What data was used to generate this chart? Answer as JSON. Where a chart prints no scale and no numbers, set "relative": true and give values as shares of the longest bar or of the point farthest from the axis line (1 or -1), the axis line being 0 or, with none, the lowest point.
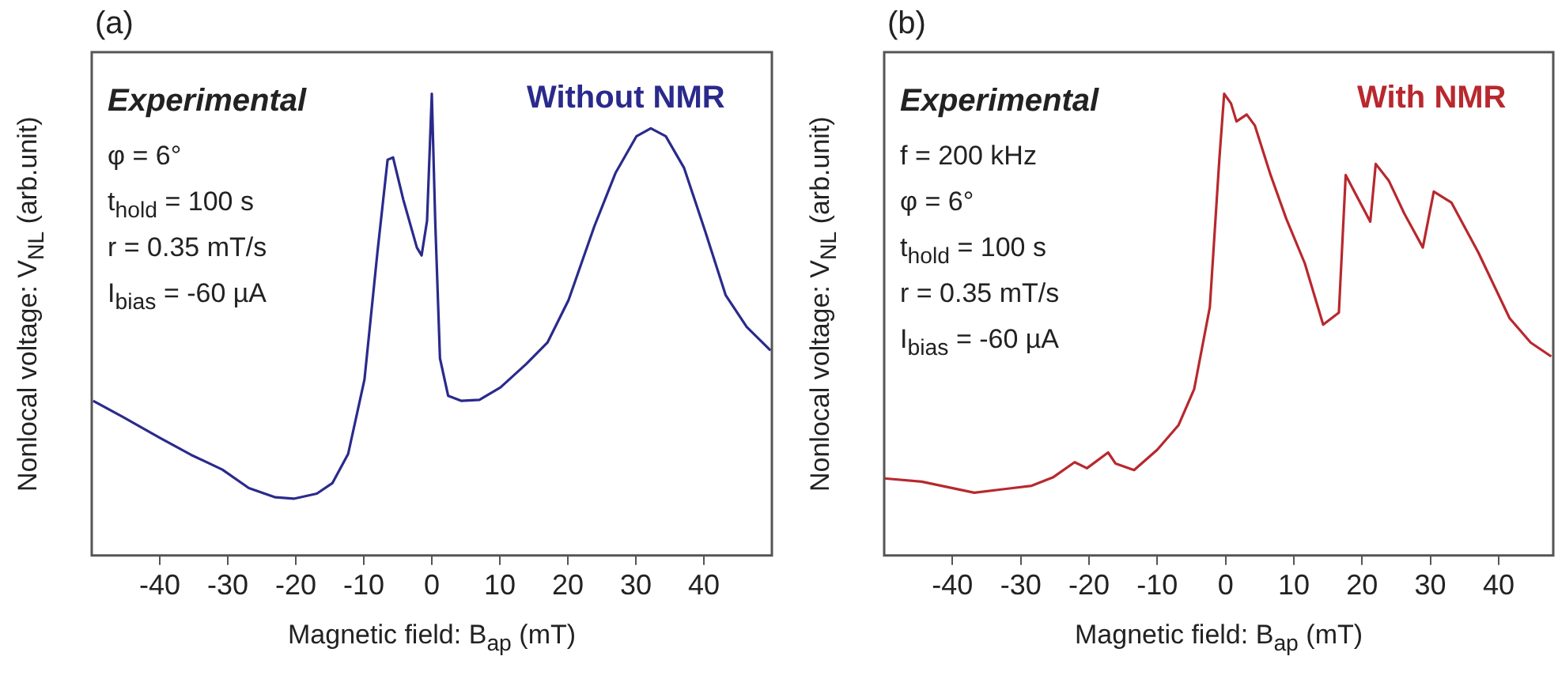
{
  "chart_data": [
    {
      "type": "line",
      "title": "(a)",
      "xlabel": "Magnetic field: B$_{ap}$  (mT)",
      "ylabel": "Nonlocal voltage: V$_{NL}$  (arb.unit)",
      "relative": true,
      "marker": "none",
      "line_style": "solid",
      "grid": false,
      "xlim": [
        -50,
        50
      ],
      "xticks": [
        -40,
        -30,
        -20,
        -10,
        0,
        10,
        20,
        30,
        40
      ],
      "annotations": [
        "Experimental",
        "φ = 6°",
        "t$_{hold}$ = 100 s",
        "r = 0.35 mT/s",
        "I$_{bias}$ = -60 µA"
      ],
      "series": [
        {
          "name": "Without NMR",
          "color": "#2a2a8c",
          "x": [
            -49.8,
            -45.4,
            -40,
            -35.4,
            -30.8,
            -26.9,
            -23,
            -20.3,
            -16.9,
            -14.6,
            -12.3,
            -9.9,
            -8.0,
            -6.5,
            -5.7,
            -4.2,
            -2.2,
            -1.5,
            -0.7,
            0,
            0.5,
            1.2,
            2.4,
            4.3,
            7.0,
            10.1,
            13.9,
            17.0,
            20.1,
            23.9,
            27.0,
            30.1,
            32.2,
            34.4,
            37.1,
            40.2,
            43.2,
            46.3,
            49.8
          ],
          "values": [
            0.335,
            0.3,
            0.255,
            0.218,
            0.186,
            0.146,
            0.126,
            0.123,
            0.134,
            0.157,
            0.22,
            0.381,
            0.656,
            0.857,
            0.862,
            0.771,
            0.667,
            0.65,
            0.725,
            1.0,
            0.725,
            0.427,
            0.346,
            0.335,
            0.337,
            0.364,
            0.415,
            0.461,
            0.553,
            0.713,
            0.828,
            0.908,
            0.925,
            0.908,
            0.839,
            0.702,
            0.564,
            0.495,
            0.444
          ]
        }
      ]
    },
    {
      "type": "line",
      "title": "(b)",
      "xlabel": "Magnetic field: B$_{ap}$  (mT)",
      "ylabel": "Nonlocal voltage: V$_{NL}$  (arb.unit)",
      "relative": true,
      "marker": "none",
      "line_style": "solid",
      "grid": false,
      "xlim": [
        -50,
        48
      ],
      "xticks": [
        -40,
        -30,
        -20,
        -10,
        0,
        10,
        20,
        30,
        40
      ],
      "annotations": [
        "Experimental",
        "f = 200 kHz",
        "φ = 6°",
        "t$_{hold}$ = 100 s",
        "r = 0.35 mT/s",
        "I$_{bias}$ = -60 µA"
      ],
      "series": [
        {
          "name": "With NMR",
          "color": "#b8282e",
          "x": [
            -50,
            -44.5,
            -36.8,
            -28.4,
            -25.3,
            -22.1,
            -20.3,
            -17.2,
            -16.1,
            -13.4,
            -10.0,
            -6.9,
            -4.6,
            -2.3,
            -0.9,
            -0.2,
            0.8,
            1.6,
            3.1,
            4.3,
            6.6,
            8.9,
            11.6,
            14.3,
            16.6,
            17.6,
            19.3,
            21.2,
            22.0,
            23.9,
            26.2,
            28.9,
            30.5,
            33.1,
            37.0,
            41.6,
            44.7,
            47.7
          ],
          "values": [
            0.167,
            0.16,
            0.136,
            0.151,
            0.169,
            0.202,
            0.189,
            0.223,
            0.199,
            0.185,
            0.229,
            0.282,
            0.36,
            0.538,
            0.86,
            1.0,
            0.979,
            0.94,
            0.955,
            0.931,
            0.824,
            0.729,
            0.633,
            0.5,
            0.526,
            0.824,
            0.776,
            0.723,
            0.848,
            0.812,
            0.74,
            0.667,
            0.788,
            0.764,
            0.657,
            0.514,
            0.461,
            0.431
          ]
        }
      ]
    }
  ]
}
